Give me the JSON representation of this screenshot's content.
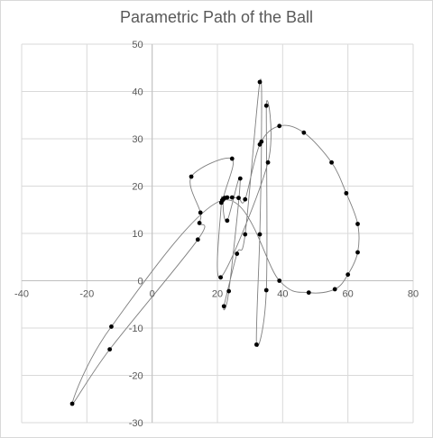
{
  "chart_data": {
    "type": "scatter",
    "title": "Parametric Path of the Ball",
    "xlabel": "",
    "ylabel": "",
    "xlim": [
      -40,
      80
    ],
    "ylim": [
      -30,
      50
    ],
    "x_ticks": [
      "-40",
      "-20",
      "0",
      "20",
      "40",
      "60",
      "80"
    ],
    "y_ticks": [
      "-30",
      "-20",
      "-10",
      "0",
      "10",
      "20",
      "30",
      "40",
      "50"
    ],
    "grid": true,
    "legend": "none",
    "line_color": "#7f7f7f",
    "marker_color": "#000000",
    "series": [
      {
        "values": [
          [
            21.5,
            17.0
          ],
          [
            21.8,
            17.3
          ],
          [
            22.2,
            17.5
          ],
          [
            23.0,
            17.6
          ],
          [
            24.5,
            17.6
          ],
          [
            26.5,
            17.5
          ],
          [
            28.5,
            17.2
          ],
          [
            33.0,
            28.8
          ],
          [
            39.0,
            32.7
          ],
          [
            46.5,
            31.3
          ],
          [
            55.0,
            25.0
          ],
          [
            59.5,
            18.5
          ],
          [
            63.0,
            12.0
          ],
          [
            63.0,
            6.0
          ],
          [
            60.0,
            1.3
          ],
          [
            56.0,
            -1.8
          ],
          [
            48.0,
            -2.5
          ],
          [
            39.0,
            0.0
          ],
          [
            21.5,
            17.0
          ],
          [
            -12.5,
            -9.7
          ],
          [
            -24.5,
            -26.0
          ],
          [
            -13.0,
            -14.5
          ],
          [
            14.0,
            8.7
          ],
          [
            14.5,
            12.2
          ],
          [
            14.8,
            14.4
          ],
          [
            12.0,
            22.0
          ],
          [
            24.5,
            25.8
          ],
          [
            21.8,
            17.2
          ],
          [
            23.0,
            12.7
          ],
          [
            27.0,
            21.6
          ],
          [
            23.5,
            -2.2
          ],
          [
            22.0,
            -5.4
          ],
          [
            26.0,
            5.7
          ],
          [
            28.5,
            9.8
          ],
          [
            33.0,
            42.0
          ],
          [
            33.5,
            29.4
          ],
          [
            33.0,
            9.8
          ],
          [
            32.0,
            -13.5
          ],
          [
            35.0,
            -2.0
          ],
          [
            35.0,
            37.0
          ],
          [
            35.5,
            25.0
          ],
          [
            21.0,
            0.7
          ],
          [
            21.2,
            16.5
          ],
          [
            21.5,
            17.0
          ]
        ]
      }
    ]
  }
}
